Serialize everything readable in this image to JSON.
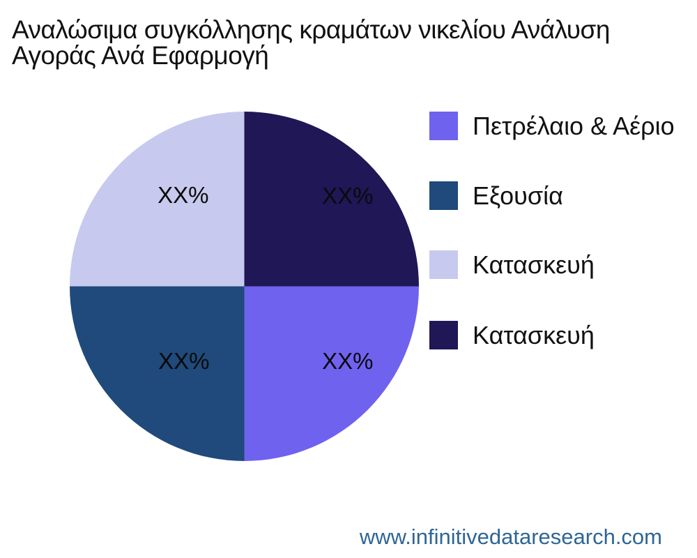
{
  "title": {
    "line1": "Αναλώσιμα συγκόλλησης κραμάτων νικελίου Ανάλυση",
    "line2": "Αγοράς Ανά Εφαρμογή"
  },
  "footer": {
    "website": "www.infinitivedataresearch.com",
    "color": "#2F6695"
  },
  "chart_data": {
    "type": "pie",
    "title": "Αναλώσιμα συγκόλλησης κραμάτων νικελίου Ανάλυση Αγοράς Ανά Εφαρμογή",
    "legend_position": "right",
    "start_angle": "3-oclock",
    "direction": "clockwise",
    "background": "#ffffff",
    "slices": [
      {
        "label": "Πετρέλαιο & Αέριο",
        "value": 25,
        "display_pct": "XX%",
        "color": "#6F62EF",
        "label_pos": {
          "x": 79.6,
          "y": 71.5
        }
      },
      {
        "label": "Εξουσία",
        "value": 25,
        "display_pct": "XX%",
        "color": "#1F4A7B",
        "label_pos": {
          "x": 32.7,
          "y": 71.5
        }
      },
      {
        "label": "Κατασκευή",
        "value": 25,
        "display_pct": "XX%",
        "color": "#C7CAEE",
        "label_pos": {
          "x": 32.5,
          "y": 24.0
        }
      },
      {
        "label": "Κατασκευή",
        "value": 25,
        "display_pct": "XX%",
        "color": "#1F1756",
        "label_pos": {
          "x": 79.6,
          "y": 24.2
        }
      }
    ]
  }
}
